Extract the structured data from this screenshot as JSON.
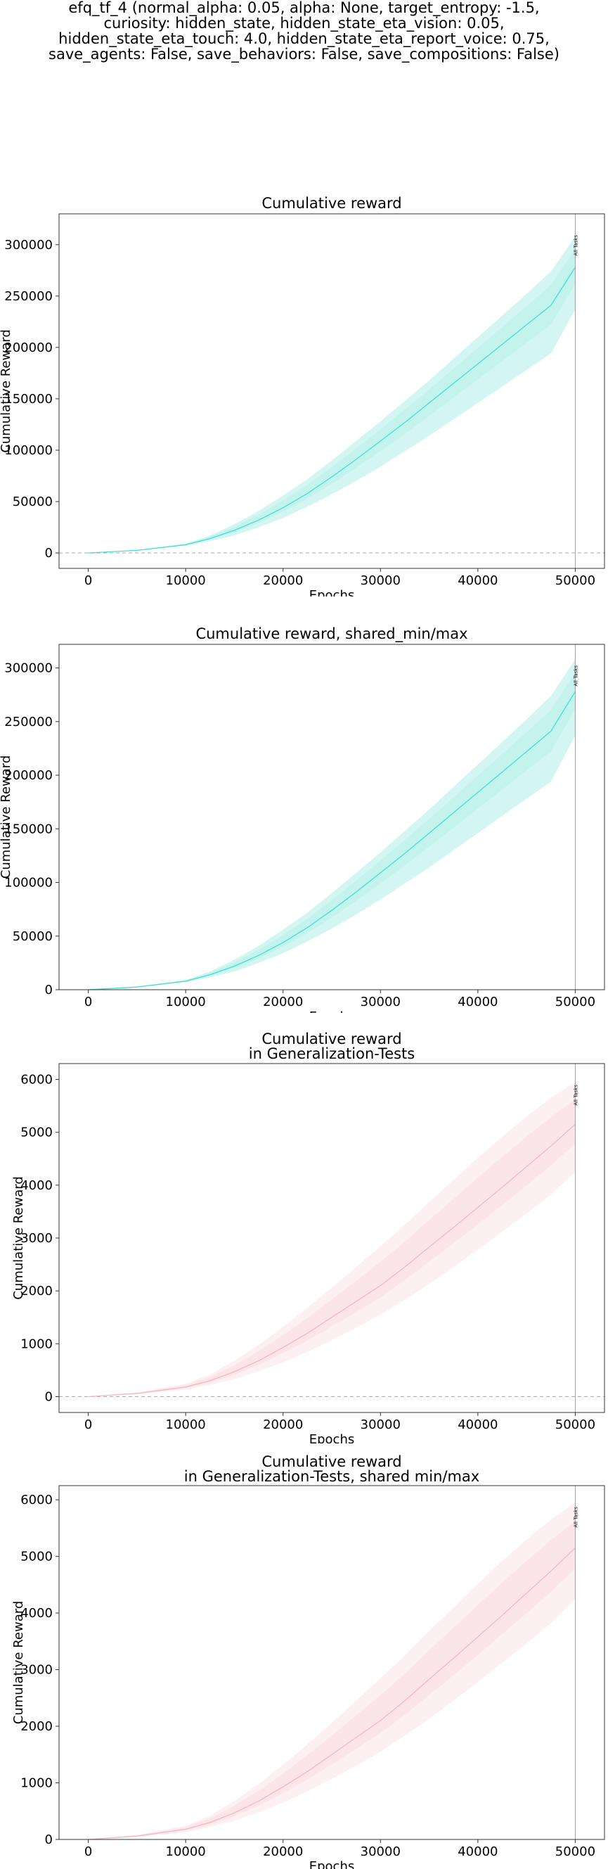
{
  "suptitle": [
    "efq_tf_4 (normal_alpha: 0.05, alpha: None, target_entropy: -1.5,",
    "curiosity: hidden_state, hidden_state_eta_vision: 0.05,",
    "hidden_state_eta_touch: 4.0, hidden_state_eta_report_voice: 0.75,",
    "save_agents: False, save_behaviors: False, save_compositions: False)"
  ],
  "colors": {
    "reward_line": "#40e0d0",
    "reward_band": "#d4f6f3",
    "reward_band_inner": "#bff2ec",
    "gen_line": "#f3b7c0",
    "gen_band": "#fdf0f2",
    "gen_band_inner": "#fbe2e6",
    "marker_line": "#a0a0a0",
    "zero_line": "#b0b0b0"
  },
  "chart_data": [
    {
      "type": "line",
      "title": [
        "Cumulative reward"
      ],
      "xlabel": "Epochs",
      "ylabel": "Cumulative Reward",
      "xlim": [
        -3000,
        53000
      ],
      "ylim": [
        -15000,
        330000
      ],
      "xticks": [
        0,
        10000,
        20000,
        30000,
        40000,
        50000
      ],
      "yticks": [
        0,
        50000,
        100000,
        150000,
        200000,
        250000,
        300000
      ],
      "zero_line": true,
      "marker": {
        "x": 50000,
        "label": "All Tasks"
      },
      "series": [
        {
          "x": [
            0,
            5000,
            10000,
            12500,
            15000,
            17500,
            20000,
            22500,
            25000,
            27500,
            30000,
            32500,
            35000,
            37500,
            40000,
            42500,
            45000,
            47500,
            50000
          ],
          "y": [
            0,
            2500,
            8000,
            14000,
            22000,
            32000,
            44000,
            58000,
            74000,
            91000,
            109000,
            127000,
            146000,
            165000,
            184000,
            203000,
            222000,
            241000,
            278000
          ],
          "upper": [
            0,
            2700,
            9000,
            17000,
            28000,
            41000,
            56000,
            72000,
            90000,
            109000,
            128000,
            148000,
            168000,
            189000,
            210000,
            231000,
            252000,
            274000,
            308000
          ],
          "lower": [
            0,
            2300,
            7200,
            11500,
            17000,
            25000,
            34000,
            45000,
            57000,
            70000,
            84000,
            99000,
            114000,
            130000,
            146000,
            162000,
            178000,
            194000,
            237000
          ]
        }
      ]
    },
    {
      "type": "line",
      "title": [
        "Cumulative reward, shared_min/max"
      ],
      "xlabel": "Epochs",
      "ylabel": "Cumulative Reward",
      "xlim": [
        -3000,
        53000
      ],
      "ylim": [
        0,
        322000
      ],
      "xticks": [
        0,
        10000,
        20000,
        30000,
        40000,
        50000
      ],
      "yticks": [
        0,
        50000,
        100000,
        150000,
        200000,
        250000,
        300000
      ],
      "zero_line": false,
      "marker": {
        "x": 50000,
        "label": "All Tasks"
      },
      "series": [
        {
          "x": [
            0,
            5000,
            10000,
            12500,
            15000,
            17500,
            20000,
            22500,
            25000,
            27500,
            30000,
            32500,
            35000,
            37500,
            40000,
            42500,
            45000,
            47500,
            50000
          ],
          "y": [
            0,
            2500,
            8000,
            14000,
            22000,
            32000,
            44000,
            58000,
            74000,
            91000,
            109000,
            127000,
            146000,
            165000,
            184000,
            203000,
            222000,
            241000,
            278000
          ],
          "upper": [
            0,
            2700,
            9000,
            17000,
            28000,
            41000,
            56000,
            72000,
            90000,
            109000,
            128000,
            148000,
            168000,
            189000,
            210000,
            231000,
            252000,
            274000,
            308000
          ],
          "lower": [
            0,
            2300,
            7200,
            11500,
            17000,
            25000,
            34000,
            45000,
            57000,
            70000,
            84000,
            99000,
            114000,
            130000,
            146000,
            162000,
            178000,
            194000,
            237000
          ]
        }
      ]
    },
    {
      "type": "line",
      "title": [
        "Cumulative reward",
        "in Generalization-Tests"
      ],
      "xlabel": "Epochs",
      "ylabel": "Cumulative Reward",
      "xlim": [
        -3000,
        53000
      ],
      "ylim": [
        -300,
        6300
      ],
      "xticks": [
        0,
        10000,
        20000,
        30000,
        40000,
        50000
      ],
      "yticks": [
        0,
        1000,
        2000,
        3000,
        4000,
        5000,
        6000
      ],
      "zero_line": true,
      "marker": {
        "x": 50000,
        "label": "All Tasks"
      },
      "series": [
        {
          "x": [
            0,
            5000,
            10000,
            12500,
            15000,
            17500,
            20000,
            22500,
            25000,
            27500,
            30000,
            32500,
            35000,
            37500,
            40000,
            42500,
            45000,
            47500,
            50000
          ],
          "y": [
            0,
            60,
            180,
            300,
            470,
            680,
            930,
            1200,
            1500,
            1800,
            2100,
            2450,
            2830,
            3200,
            3580,
            3960,
            4350,
            4740,
            5150
          ],
          "upper": [
            0,
            80,
            240,
            420,
            680,
            980,
            1320,
            1680,
            2060,
            2450,
            2850,
            3250,
            3680,
            4100,
            4520,
            4920,
            5300,
            5650,
            5950
          ],
          "lower": [
            0,
            40,
            130,
            220,
            330,
            480,
            650,
            850,
            1070,
            1300,
            1550,
            1830,
            2130,
            2450,
            2780,
            3120,
            3460,
            3820,
            4250
          ]
        }
      ]
    },
    {
      "type": "line",
      "title": [
        "Cumulative reward",
        "in Generalization-Tests, shared min/max"
      ],
      "xlabel": "Epochs",
      "ylabel": "Cumulative Reward",
      "xlim": [
        -3000,
        53000
      ],
      "ylim": [
        0,
        6250
      ],
      "xticks": [
        0,
        10000,
        20000,
        30000,
        40000,
        50000
      ],
      "yticks": [
        0,
        1000,
        2000,
        3000,
        4000,
        5000,
        6000
      ],
      "zero_line": false,
      "marker": {
        "x": 50000,
        "label": "All Tasks"
      },
      "series": [
        {
          "x": [
            0,
            5000,
            10000,
            12500,
            15000,
            17500,
            20000,
            22500,
            25000,
            27500,
            30000,
            32500,
            35000,
            37500,
            40000,
            42500,
            45000,
            47500,
            50000
          ],
          "y": [
            0,
            60,
            180,
            300,
            470,
            680,
            930,
            1200,
            1500,
            1800,
            2100,
            2450,
            2830,
            3200,
            3580,
            3960,
            4350,
            4740,
            5150
          ],
          "upper": [
            0,
            80,
            240,
            420,
            680,
            980,
            1320,
            1680,
            2060,
            2450,
            2850,
            3250,
            3680,
            4100,
            4520,
            4920,
            5300,
            5650,
            5950
          ],
          "lower": [
            0,
            40,
            130,
            220,
            330,
            480,
            650,
            850,
            1070,
            1300,
            1550,
            1830,
            2130,
            2450,
            2780,
            3120,
            3460,
            3820,
            4250
          ]
        }
      ]
    }
  ]
}
